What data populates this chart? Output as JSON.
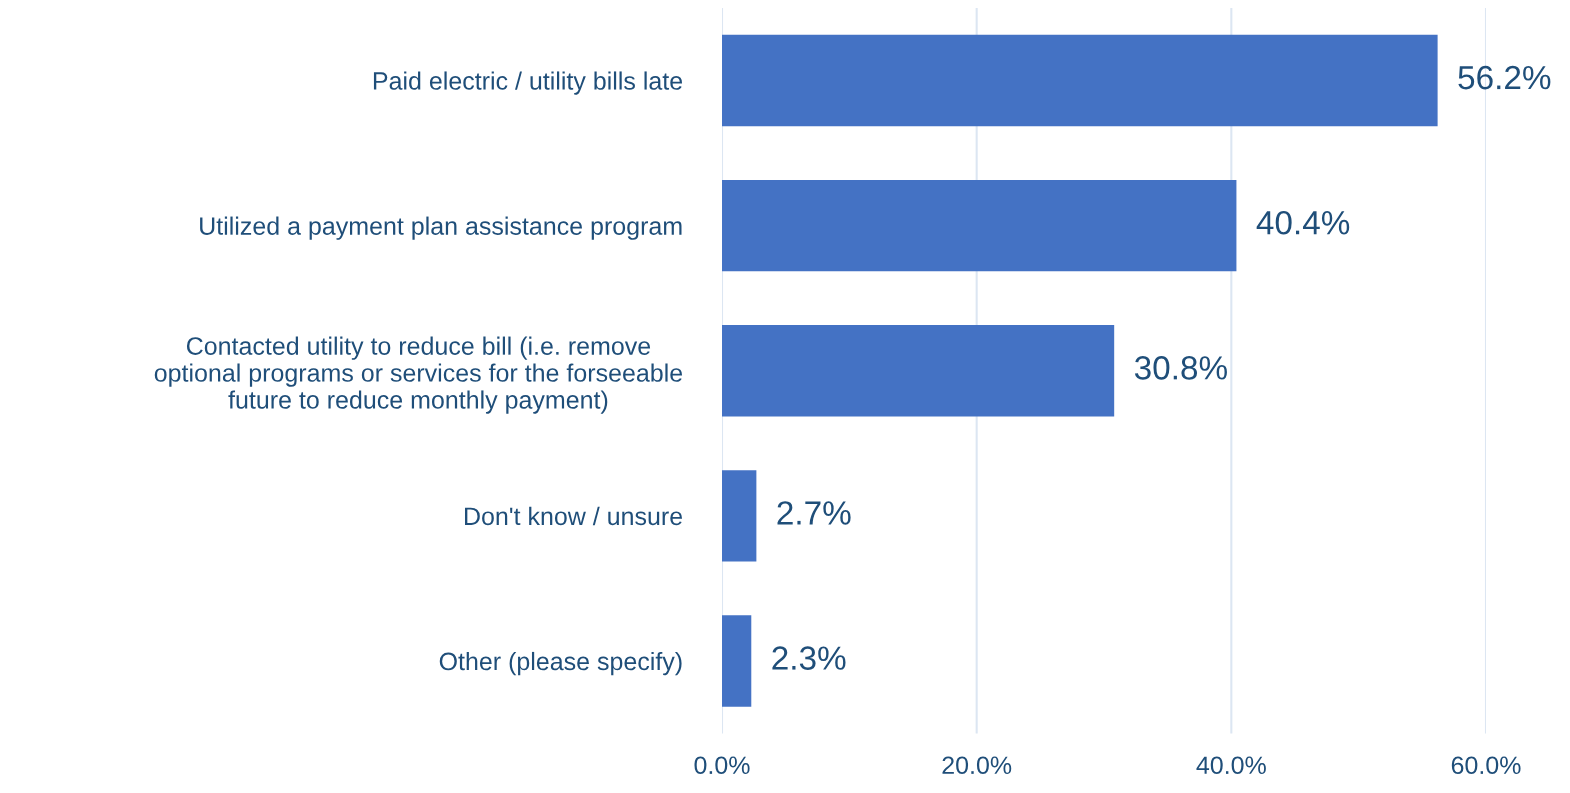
{
  "chart_data": {
    "type": "bar",
    "orientation": "horizontal",
    "categories": [
      "Paid electric / utility bills late",
      "Utilized a payment plan assistance program",
      "Contacted utility to reduce bill (i.e. remove\noptional programs or services for the forseeable\nfuture to reduce monthly payment)",
      "Don't know / unsure",
      "Other (please specify)"
    ],
    "values": [
      56.2,
      40.4,
      30.8,
      2.7,
      2.3
    ],
    "value_labels": [
      "56.2%",
      "40.4%",
      "30.8%",
      "2.7%",
      "2.3%"
    ],
    "color": "#4472c4",
    "xlim": [
      0,
      60
    ],
    "xticks": [
      {
        "value": 0,
        "label": "0.0%"
      },
      {
        "value": 20,
        "label": "20.0%"
      },
      {
        "value": 40,
        "label": "40.0%"
      },
      {
        "value": 60,
        "label": "60.0%"
      }
    ],
    "grid": "x"
  }
}
